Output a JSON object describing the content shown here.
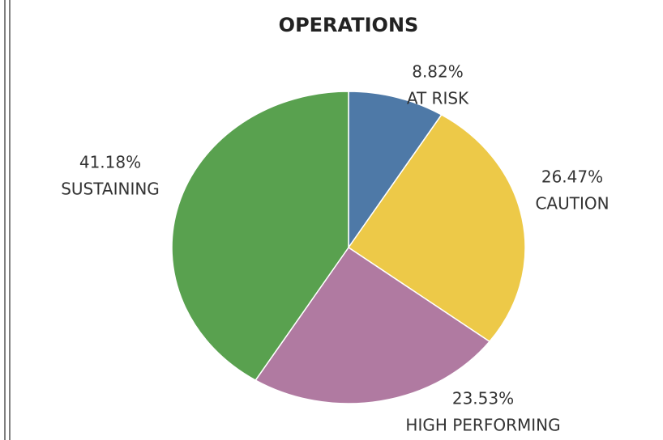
{
  "chart_data": {
    "type": "pie",
    "title": "OPERATIONS",
    "categories": [
      "AT RISK",
      "CAUTION",
      "HIGH PERFORMING",
      "SUSTAINING"
    ],
    "values": [
      8.82,
      26.47,
      23.53,
      41.18
    ],
    "value_labels": [
      "8.82%",
      "26.47%",
      "23.53%",
      "41.18%"
    ],
    "colors": [
      "#4e79a7",
      "#edc948",
      "#b07aa1",
      "#59a14f"
    ]
  }
}
